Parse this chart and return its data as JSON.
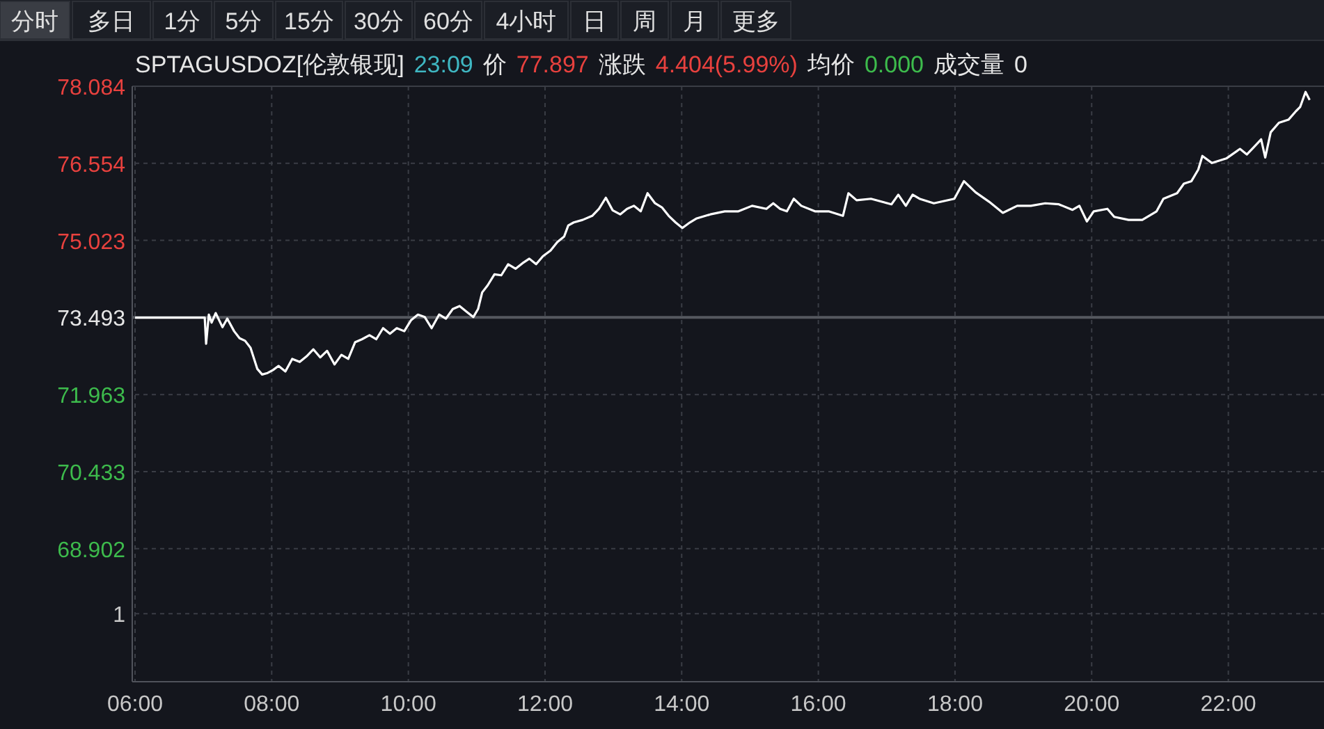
{
  "chart_data": {
    "type": "line",
    "title": "SPTAGUSDOZ[伦敦银现]",
    "annotations": [
      "分时",
      "多日",
      "1分",
      "5分",
      "15分",
      "30分",
      "60分",
      "4小时",
      "日",
      "周",
      "月",
      "更多",
      "23:09",
      "价",
      "77.897",
      "涨跌",
      "4.404(5.99%)",
      "均价",
      "0.000",
      "成交量",
      "0",
      "1"
    ],
    "x": [
      6.0,
      7.02,
      7.04,
      7.08,
      7.12,
      7.18,
      7.28,
      7.35,
      7.45,
      7.53,
      7.61,
      7.69,
      7.79,
      7.86,
      7.94,
      8.02,
      8.1,
      8.2,
      8.3,
      8.41,
      8.51,
      8.61,
      8.71,
      8.81,
      8.92,
      9.02,
      9.12,
      9.22,
      9.32,
      9.43,
      9.53,
      9.63,
      9.73,
      9.83,
      9.94,
      10.04,
      10.14,
      10.24,
      10.34,
      10.45,
      10.55,
      10.65,
      10.75,
      10.85,
      10.95,
      11.02,
      11.08,
      11.16,
      11.26,
      11.36,
      11.46,
      11.57,
      11.67,
      11.77,
      11.87,
      11.97,
      12.08,
      12.18,
      12.28,
      12.34,
      12.42,
      12.55,
      12.69,
      12.79,
      12.89,
      12.99,
      13.1,
      13.2,
      13.3,
      13.4,
      13.5,
      13.61,
      13.71,
      13.81,
      13.91,
      14.01,
      14.12,
      14.22,
      14.42,
      14.63,
      14.83,
      15.03,
      15.24,
      15.34,
      15.44,
      15.54,
      15.64,
      15.75,
      15.95,
      16.15,
      16.36,
      16.44,
      16.56,
      16.77,
      17.07,
      17.17,
      17.28,
      17.38,
      17.48,
      17.69,
      17.99,
      18.13,
      18.3,
      18.5,
      18.7,
      18.91,
      19.11,
      19.32,
      19.52,
      19.72,
      19.82,
      19.93,
      20.03,
      20.23,
      20.33,
      20.54,
      20.74,
      20.95,
      21.05,
      21.25,
      21.35,
      21.46,
      21.56,
      21.62,
      21.76,
      21.97,
      22.17,
      22.27,
      22.37,
      22.48,
      22.54,
      22.62,
      22.74,
      22.88,
      22.99,
      23.05,
      23.13,
      23.19
    ],
    "series": [
      {
        "color": "#ffffff",
        "values": [
          73.49,
          73.49,
          72.97,
          73.55,
          73.39,
          73.58,
          73.3,
          73.47,
          73.22,
          73.08,
          73.03,
          72.89,
          72.47,
          72.36,
          72.39,
          72.45,
          72.53,
          72.42,
          72.67,
          72.61,
          72.72,
          72.86,
          72.7,
          72.83,
          72.56,
          72.75,
          72.67,
          73.0,
          73.06,
          73.14,
          73.06,
          73.28,
          73.17,
          73.28,
          73.22,
          73.44,
          73.55,
          73.5,
          73.28,
          73.55,
          73.47,
          73.66,
          73.72,
          73.61,
          73.5,
          73.66,
          73.99,
          74.13,
          74.35,
          74.33,
          74.55,
          74.46,
          74.57,
          74.66,
          74.55,
          74.71,
          74.82,
          74.99,
          75.1,
          75.32,
          75.38,
          75.43,
          75.51,
          75.65,
          75.87,
          75.62,
          75.54,
          75.65,
          75.71,
          75.6,
          75.96,
          75.76,
          75.68,
          75.51,
          75.38,
          75.27,
          75.38,
          75.46,
          75.54,
          75.6,
          75.6,
          75.71,
          75.65,
          75.76,
          75.65,
          75.6,
          75.85,
          75.71,
          75.6,
          75.6,
          75.51,
          75.96,
          75.82,
          75.85,
          75.74,
          75.93,
          75.71,
          75.93,
          75.85,
          75.76,
          75.85,
          76.2,
          75.98,
          75.79,
          75.57,
          75.71,
          75.71,
          75.76,
          75.74,
          75.63,
          75.71,
          75.4,
          75.6,
          75.65,
          75.49,
          75.43,
          75.43,
          75.6,
          75.85,
          75.96,
          76.15,
          76.2,
          76.43,
          76.7,
          76.56,
          76.65,
          76.84,
          76.73,
          76.87,
          77.03,
          76.67,
          77.17,
          77.36,
          77.42,
          77.59,
          77.67,
          77.97,
          77.81
        ]
      }
    ],
    "xlim": [
      6,
      23.4
    ],
    "ylim": [
      66.26,
      78.084
    ],
    "xticks": [
      {
        "value": 6,
        "label": "06:00"
      },
      {
        "value": 8,
        "label": "08:00"
      },
      {
        "value": 10,
        "label": "10:00"
      },
      {
        "value": 12,
        "label": "12:00"
      },
      {
        "value": 14,
        "label": "14:00"
      },
      {
        "value": 16,
        "label": "16:00"
      },
      {
        "value": 18,
        "label": "18:00"
      },
      {
        "value": 20,
        "label": "20:00"
      },
      {
        "value": 22,
        "label": "22:00"
      }
    ],
    "yticks": [
      78.084,
      76.554,
      75.023,
      73.493,
      71.963,
      70.433,
      68.902,
      {
        "value": 67.61,
        "label": null
      }
    ],
    "ref_lines": [
      {
        "axis": "y",
        "value": 73.493,
        "color": "#55585f"
      }
    ],
    "grid": true
  }
}
